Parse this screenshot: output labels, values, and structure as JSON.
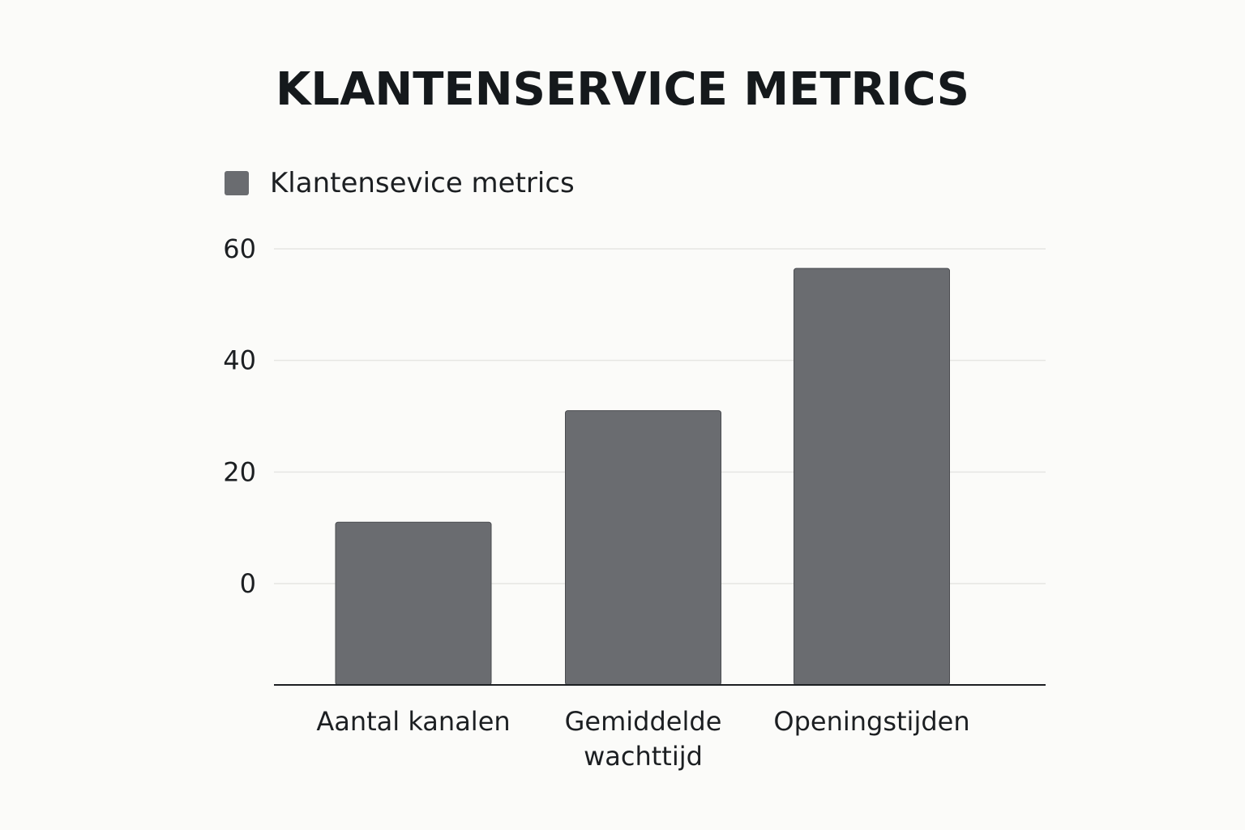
{
  "chart_data": {
    "type": "bar",
    "title": "KLANTENSERVICE METRICS",
    "categories": [
      "Aantal kanalen",
      "Gemiddelde wachttijd",
      "Openingstijden"
    ],
    "category_lines": [
      [
        "Aantal kanalen"
      ],
      [
        "Gemiddelde",
        "wachttijd"
      ],
      [
        "Openingstijden"
      ]
    ],
    "series": [
      {
        "name": "Klantensevice metrics",
        "values": [
          11,
          31,
          56.5
        ],
        "color": "#6a6c70"
      }
    ],
    "yticks": [
      0,
      20,
      40,
      60
    ],
    "ylim": [
      -18,
      60
    ],
    "xlabel": "",
    "ylabel": "",
    "grid": true,
    "legend": "top-left"
  }
}
